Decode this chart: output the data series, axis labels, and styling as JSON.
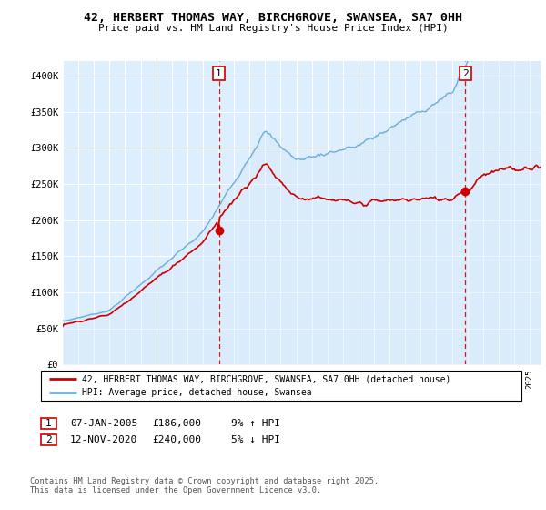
{
  "title_line1": "42, HERBERT THOMAS WAY, BIRCHGROVE, SWANSEA, SA7 0HH",
  "title_line2": "Price paid vs. HM Land Registry's House Price Index (HPI)",
  "ylim": [
    0,
    420000
  ],
  "yticks": [
    0,
    50000,
    100000,
    150000,
    200000,
    250000,
    300000,
    350000,
    400000
  ],
  "ytick_labels": [
    "£0",
    "£50K",
    "£100K",
    "£150K",
    "£200K",
    "£250K",
    "£300K",
    "£350K",
    "£400K"
  ],
  "xlim_start": 1995.0,
  "xlim_end": 2025.7,
  "transaction1_date": 2005.03,
  "transaction1_price": 186000,
  "transaction1_text": "07-JAN-2005",
  "transaction1_hpi_text": "9% ↑ HPI",
  "transaction2_date": 2020.87,
  "transaction2_price": 240000,
  "transaction2_text": "12-NOV-2020",
  "transaction2_hpi_text": "5% ↓ HPI",
  "legend_line1": "42, HERBERT THOMAS WAY, BIRCHGROVE, SWANSEA, SA7 0HH (detached house)",
  "legend_line2": "HPI: Average price, detached house, Swansea",
  "footer_line1": "Contains HM Land Registry data © Crown copyright and database right 2025.",
  "footer_line2": "This data is licensed under the Open Government Licence v3.0.",
  "property_color": "#cc0000",
  "hpi_color": "#6baed6",
  "hpi_fill_color": "#d6e9f8",
  "vline_color": "#cc0000",
  "chart_bg_color": "#ddeeff",
  "grid_color": "#ffffff"
}
